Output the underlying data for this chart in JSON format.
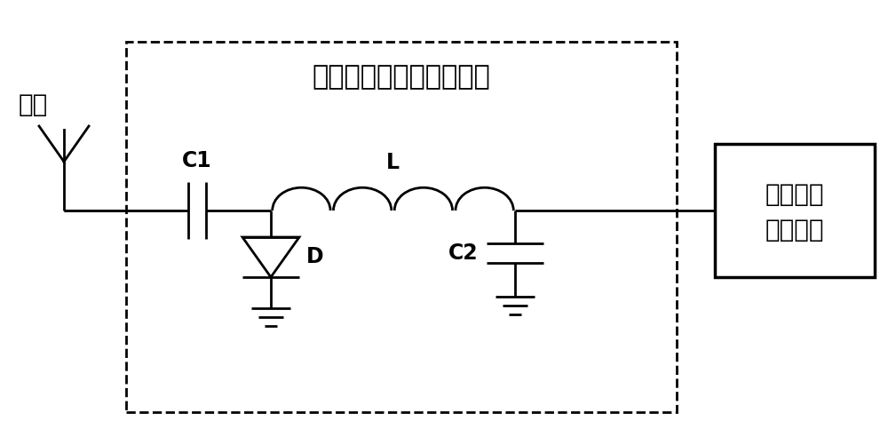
{
  "title": "低功耗反向散射放大标签",
  "antenna_label": "天线",
  "box_label_line1": "偏置电压",
  "box_label_line2": "切换模块",
  "C1_label": "C1",
  "C2_label": "C2",
  "L_label": "L",
  "D_label": "D",
  "bg_color": "#ffffff",
  "line_color": "#000000",
  "font_size_title": 22,
  "font_size_label": 20,
  "font_size_component": 17,
  "lw": 2.0
}
